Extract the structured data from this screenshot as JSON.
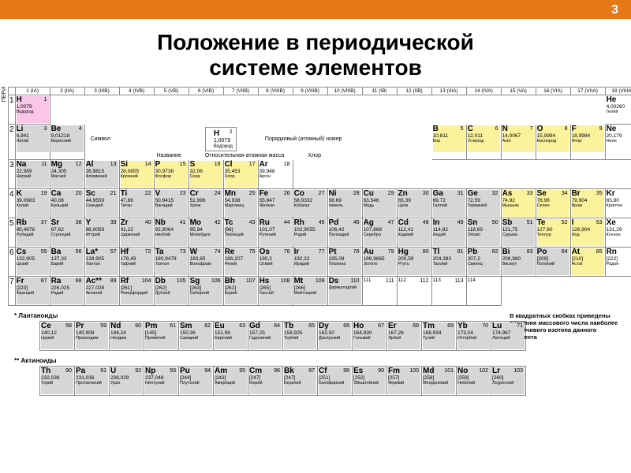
{
  "page_number": "3",
  "title_line1": "Положение в периодической",
  "title_line2": "системе элементов",
  "periods_label": "ПЕРИ",
  "group_labels": [
    "1 (IA)",
    "2 (IIA)",
    "3 (IIIB)",
    "4 (IVB)",
    "5 (VB)",
    "6 (VIB)",
    "7 (VIIB)",
    "8 (VIIIB)",
    "9 (VIIIB)",
    "10 (VIIIB)",
    "11 (IB)",
    "12 (IIB)",
    "13 (IIIA)",
    "14 (IVA)",
    "15 (VA)",
    "16 (VIA)",
    "17 (VIIA)",
    "18 (VIIIA)"
  ],
  "legend": {
    "symbol": "H",
    "number_label": "Порядковый (атомный) номер",
    "mass": "1,0079",
    "symbol_label": "Символ",
    "name": "Водород",
    "name_label": "Название",
    "mass_label": "Относительная атомная масса",
    "extra": "Хлор"
  },
  "footnote": "В квадратных скобках приведены значения массового числа наиболее устойчивого изотопа данного элемента",
  "lanth_label": "* Лантаноиды",
  "act_label": "** Актиноиды",
  "colors": {
    "h": "#f9c6e8",
    "y": "#faf29c",
    "g": "#d6d6d6",
    "w": "#ffffff",
    "accent": "#e67817"
  },
  "periods": [
    {
      "n": "1",
      "cells": [
        {
          "sym": "H",
          "num": "1",
          "mass": "1,0079",
          "name": "Водород",
          "c": "h"
        },
        null,
        null,
        null,
        null,
        null,
        null,
        null,
        null,
        null,
        null,
        null,
        null,
        null,
        null,
        null,
        null,
        {
          "sym": "He",
          "num": "2",
          "mass": "4,00260",
          "name": "Гелий",
          "c": "w"
        }
      ]
    },
    {
      "n": "2",
      "cells": [
        {
          "sym": "Li",
          "num": "3",
          "mass": "6,941",
          "name": "Литий",
          "c": "g"
        },
        {
          "sym": "Be",
          "num": "4",
          "mass": "9,01218",
          "name": "Бериллий",
          "c": "g"
        },
        null,
        null,
        null,
        null,
        null,
        null,
        null,
        null,
        null,
        null,
        {
          "sym": "B",
          "num": "5",
          "mass": "10,811",
          "name": "Бор",
          "c": "y"
        },
        {
          "sym": "C",
          "num": "6",
          "mass": "12,011",
          "name": "Углерод",
          "c": "y"
        },
        {
          "sym": "N",
          "num": "7",
          "mass": "14,0067",
          "name": "Азот",
          "c": "y"
        },
        {
          "sym": "O",
          "num": "8",
          "mass": "15,9994",
          "name": "Кислород",
          "c": "y"
        },
        {
          "sym": "F",
          "num": "9",
          "mass": "18,9984",
          "name": "Фтор",
          "c": "y"
        },
        {
          "sym": "Ne",
          "num": "10",
          "mass": "20,179",
          "name": "Неон",
          "c": "w"
        }
      ]
    },
    {
      "n": "3",
      "cells": [
        {
          "sym": "Na",
          "num": "11",
          "mass": "22,989",
          "name": "Натрий",
          "c": "g"
        },
        {
          "sym": "Mg",
          "num": "12",
          "mass": "24,305",
          "name": "Магний",
          "c": "g"
        },
        null,
        null,
        null,
        null,
        null,
        null,
        null,
        null,
        null,
        null,
        {
          "sym": "Al",
          "num": "13",
          "mass": "26,9815",
          "name": "Алюминий",
          "c": "g"
        },
        {
          "sym": "Si",
          "num": "14",
          "mass": "28,0855",
          "name": "Кремний",
          "c": "y"
        },
        {
          "sym": "P",
          "num": "15",
          "mass": "30,9738",
          "name": "Фосфор",
          "c": "y"
        },
        {
          "sym": "S",
          "num": "16",
          "mass": "32,06",
          "name": "Сера",
          "c": "y"
        },
        {
          "sym": "Cl",
          "num": "17",
          "mass": "35,453",
          "name": "Хлор",
          "c": "y"
        },
        {
          "sym": "Ar",
          "num": "18",
          "mass": "39,948",
          "name": "Аргон",
          "c": "w"
        }
      ]
    },
    {
      "n": "4",
      "cells": [
        {
          "sym": "K",
          "num": "19",
          "mass": "39,0983",
          "name": "Калий",
          "c": "g"
        },
        {
          "sym": "Ca",
          "num": "20",
          "mass": "40,08",
          "name": "Кальций",
          "c": "g"
        },
        {
          "sym": "Sc",
          "num": "21",
          "mass": "44,9559",
          "name": "Скандий",
          "c": "g"
        },
        {
          "sym": "Ti",
          "num": "22",
          "mass": "47,88",
          "name": "Титан",
          "c": "g"
        },
        {
          "sym": "V",
          "num": "23",
          "mass": "50,9415",
          "name": "Ванадий",
          "c": "g"
        },
        {
          "sym": "Cr",
          "num": "24",
          "mass": "51,996",
          "name": "Хром",
          "c": "g"
        },
        {
          "sym": "Mn",
          "num": "25",
          "mass": "54,938",
          "name": "Марганец",
          "c": "g"
        },
        {
          "sym": "Fe",
          "num": "26",
          "mass": "55,847",
          "name": "Железо",
          "c": "g"
        },
        {
          "sym": "Co",
          "num": "27",
          "mass": "58,9332",
          "name": "Кобальт",
          "c": "g"
        },
        {
          "sym": "Ni",
          "num": "28",
          "mass": "58,69",
          "name": "Никель",
          "c": "g"
        },
        {
          "sym": "Cu",
          "num": "29",
          "mass": "63,546",
          "name": "Медь",
          "c": "g"
        },
        {
          "sym": "Zn",
          "num": "30",
          "mass": "65,39",
          "name": "Цинк",
          "c": "g"
        },
        {
          "sym": "Ga",
          "num": "31",
          "mass": "69,72",
          "name": "Галлий",
          "c": "g"
        },
        {
          "sym": "Ge",
          "num": "32",
          "mass": "72,59",
          "name": "Германий",
          "c": "g"
        },
        {
          "sym": "As",
          "num": "33",
          "mass": "74,92",
          "name": "Мышьяк",
          "c": "y"
        },
        {
          "sym": "Se",
          "num": "34",
          "mass": "78,96",
          "name": "Селен",
          "c": "y"
        },
        {
          "sym": "Br",
          "num": "35",
          "mass": "79,904",
          "name": "Бром",
          "c": "y"
        },
        {
          "sym": "Kr",
          "num": "36",
          "mass": "83,80",
          "name": "Криптон",
          "c": "w"
        }
      ]
    },
    {
      "n": "5",
      "cells": [
        {
          "sym": "Rb",
          "num": "37",
          "mass": "85,4678",
          "name": "Рубидий",
          "c": "g"
        },
        {
          "sym": "Sr",
          "num": "38",
          "mass": "87,62",
          "name": "Стронций",
          "c": "g"
        },
        {
          "sym": "Y",
          "num": "39",
          "mass": "88,9059",
          "name": "Иттрий",
          "c": "g"
        },
        {
          "sym": "Zr",
          "num": "40",
          "mass": "91,22",
          "name": "Цирконий",
          "c": "g"
        },
        {
          "sym": "Nb",
          "num": "41",
          "mass": "92,9064",
          "name": "Ниобий",
          "c": "g"
        },
        {
          "sym": "Mo",
          "num": "42",
          "mass": "95,94",
          "name": "Молибден",
          "c": "g"
        },
        {
          "sym": "Tc",
          "num": "43",
          "mass": "[98]",
          "name": "Технеций",
          "c": "g"
        },
        {
          "sym": "Ru",
          "num": "44",
          "mass": "101,07",
          "name": "Рутений",
          "c": "g"
        },
        {
          "sym": "Rh",
          "num": "45",
          "mass": "102,9055",
          "name": "Родий",
          "c": "g"
        },
        {
          "sym": "Pd",
          "num": "46",
          "mass": "106,42",
          "name": "Палладий",
          "c": "g"
        },
        {
          "sym": "Ag",
          "num": "47",
          "mass": "107,868",
          "name": "Серебро",
          "c": "g"
        },
        {
          "sym": "Cd",
          "num": "48",
          "mass": "112,41",
          "name": "Кадмий",
          "c": "g"
        },
        {
          "sym": "In",
          "num": "49",
          "mass": "114,82",
          "name": "Индий",
          "c": "g"
        },
        {
          "sym": "Sn",
          "num": "50",
          "mass": "118,69",
          "name": "Олово",
          "c": "g"
        },
        {
          "sym": "Sb",
          "num": "51",
          "mass": "121,75",
          "name": "Сурьма",
          "c": "g"
        },
        {
          "sym": "Te",
          "num": "52",
          "mass": "127,60",
          "name": "Теллур",
          "c": "y"
        },
        {
          "sym": "I",
          "num": "53",
          "mass": "126,904",
          "name": "Иод",
          "c": "y"
        },
        {
          "sym": "Xe",
          "num": "54",
          "mass": "131,29",
          "name": "Ксенон",
          "c": "w"
        }
      ]
    },
    {
      "n": "6",
      "cells": [
        {
          "sym": "Cs",
          "num": "55",
          "mass": "132,905",
          "name": "Цезий",
          "c": "g"
        },
        {
          "sym": "Ba",
          "num": "56",
          "mass": "137,33",
          "name": "Барий",
          "c": "g"
        },
        {
          "sym": "La*",
          "num": "57",
          "mass": "138,905",
          "name": "Лантан",
          "c": "g"
        },
        {
          "sym": "Hf",
          "num": "72",
          "mass": "178,49",
          "name": "Гафний",
          "c": "g"
        },
        {
          "sym": "Ta",
          "num": "73",
          "mass": "180,9479",
          "name": "Тантал",
          "c": "g"
        },
        {
          "sym": "W",
          "num": "74",
          "mass": "183,85",
          "name": "Вольфрам",
          "c": "g"
        },
        {
          "sym": "Re",
          "num": "75",
          "mass": "186,207",
          "name": "Рений",
          "c": "g"
        },
        {
          "sym": "Os",
          "num": "76",
          "mass": "190,2",
          "name": "Осмий",
          "c": "g"
        },
        {
          "sym": "Ir",
          "num": "77",
          "mass": "192,22",
          "name": "Иридий",
          "c": "g"
        },
        {
          "sym": "Pt",
          "num": "78",
          "mass": "195,08",
          "name": "Платина",
          "c": "g"
        },
        {
          "sym": "Au",
          "num": "79",
          "mass": "196,9665",
          "name": "Золото",
          "c": "g"
        },
        {
          "sym": "Hg",
          "num": "80",
          "mass": "200,59",
          "name": "Ртуть",
          "c": "g"
        },
        {
          "sym": "Tl",
          "num": "81",
          "mass": "204,383",
          "name": "Таллий",
          "c": "g"
        },
        {
          "sym": "Pb",
          "num": "82",
          "mass": "207,2",
          "name": "Свинец",
          "c": "g"
        },
        {
          "sym": "Bi",
          "num": "83",
          "mass": "208,980",
          "name": "Висмут",
          "c": "g"
        },
        {
          "sym": "Po",
          "num": "84",
          "mass": "[209]",
          "name": "Полоний",
          "c": "g"
        },
        {
          "sym": "At",
          "num": "85",
          "mass": "[210]",
          "name": "Астат",
          "c": "y"
        },
        {
          "sym": "Rn",
          "num": "86",
          "mass": "[222]",
          "name": "Радон",
          "c": "w"
        }
      ]
    },
    {
      "n": "7",
      "cells": [
        {
          "sym": "Fr",
          "num": "87",
          "mass": "[223]",
          "name": "Франций",
          "c": "g"
        },
        {
          "sym": "Ra",
          "num": "88",
          "mass": "226,025",
          "name": "Радий",
          "c": "g"
        },
        {
          "sym": "Ac**",
          "num": "89",
          "mass": "227,028",
          "name": "Актиний",
          "c": "g"
        },
        {
          "sym": "Rf",
          "num": "104",
          "mass": "[261]",
          "name": "Резерфордий",
          "c": "g"
        },
        {
          "sym": "Db",
          "num": "105",
          "mass": "[262]",
          "name": "Дубний",
          "c": "g"
        },
        {
          "sym": "Sg",
          "num": "106",
          "mass": "[263]",
          "name": "Сиборгий",
          "c": "g"
        },
        {
          "sym": "Bh",
          "num": "107",
          "mass": "[262]",
          "name": "Борий",
          "c": "g"
        },
        {
          "sym": "Hs",
          "num": "108",
          "mass": "[265]",
          "name": "Хассий",
          "c": "g"
        },
        {
          "sym": "Mt",
          "num": "109",
          "mass": "[266]",
          "name": "Мейтнерий",
          "c": "g"
        },
        {
          "sym": "Ds",
          "num": "110",
          "mass": "",
          "name": "Дармштадтий",
          "c": "g"
        },
        {
          "sym": "",
          "num": "111",
          "mass": "111",
          "name": "",
          "c": "w"
        },
        {
          "sym": "",
          "num": "112",
          "mass": "112",
          "name": "",
          "c": "w"
        },
        {
          "sym": "",
          "num": "113",
          "mass": "113",
          "name": "",
          "c": "w"
        },
        {
          "sym": "",
          "num": "",
          "mass": "114",
          "name": "",
          "c": "w"
        },
        null,
        null,
        null,
        null
      ]
    }
  ],
  "lanthanides": [
    {
      "sym": "Ce",
      "num": "58",
      "mass": "140,12",
      "name": "Церий"
    },
    {
      "sym": "Pr",
      "num": "59",
      "mass": "140,908",
      "name": "Празеодим"
    },
    {
      "sym": "Nd",
      "num": "60",
      "mass": "144,24",
      "name": "Неодим"
    },
    {
      "sym": "Pm",
      "num": "61",
      "mass": "[145]",
      "name": "Прометий"
    },
    {
      "sym": "Sm",
      "num": "62",
      "mass": "150,36",
      "name": "Самарий"
    },
    {
      "sym": "Eu",
      "num": "63",
      "mass": "151,96",
      "name": "Европий"
    },
    {
      "sym": "Gd",
      "num": "64",
      "mass": "157,25",
      "name": "Гадолиний"
    },
    {
      "sym": "Tb",
      "num": "65",
      "mass": "158,925",
      "name": "Тербий"
    },
    {
      "sym": "Dy",
      "num": "66",
      "mass": "162,50",
      "name": "Диспрозий"
    },
    {
      "sym": "Ho",
      "num": "67",
      "mass": "164,930",
      "name": "Гольмий"
    },
    {
      "sym": "Er",
      "num": "68",
      "mass": "167,26",
      "name": "Эрбий"
    },
    {
      "sym": "Tm",
      "num": "69",
      "mass": "168,934",
      "name": "Тулий"
    },
    {
      "sym": "Yb",
      "num": "70",
      "mass": "173,04",
      "name": "Иттербий"
    },
    {
      "sym": "Lu",
      "num": "71",
      "mass": "174,967",
      "name": "Лютеций"
    }
  ],
  "actinides": [
    {
      "sym": "Th",
      "num": "90",
      "mass": "232,038",
      "name": "Торий"
    },
    {
      "sym": "Pa",
      "num": "91",
      "mass": "231,036",
      "name": "Протактиний"
    },
    {
      "sym": "U",
      "num": "92",
      "mass": "238,029",
      "name": "Уран"
    },
    {
      "sym": "Np",
      "num": "93",
      "mass": "237,048",
      "name": "Нептуний"
    },
    {
      "sym": "Pu",
      "num": "94",
      "mass": "[244]",
      "name": "Плутоний"
    },
    {
      "sym": "Am",
      "num": "95",
      "mass": "[243]",
      "name": "Америций"
    },
    {
      "sym": "Cm",
      "num": "96",
      "mass": "[247]",
      "name": "Кюрий"
    },
    {
      "sym": "Bk",
      "num": "97",
      "mass": "[247]",
      "name": "Берклий"
    },
    {
      "sym": "Cf",
      "num": "98",
      "mass": "[251]",
      "name": "Калифорний"
    },
    {
      "sym": "Es",
      "num": "99",
      "mass": "[252]",
      "name": "Эйнштейний"
    },
    {
      "sym": "Fm",
      "num": "100",
      "mass": "[257]",
      "name": "Фермий"
    },
    {
      "sym": "Md",
      "num": "101",
      "mass": "[258]",
      "name": "Менделевий"
    },
    {
      "sym": "No",
      "num": "102",
      "mass": "[259]",
      "name": "Нобелий"
    },
    {
      "sym": "Lr",
      "num": "103",
      "mass": "[260]",
      "name": "Лоуренсий"
    }
  ]
}
